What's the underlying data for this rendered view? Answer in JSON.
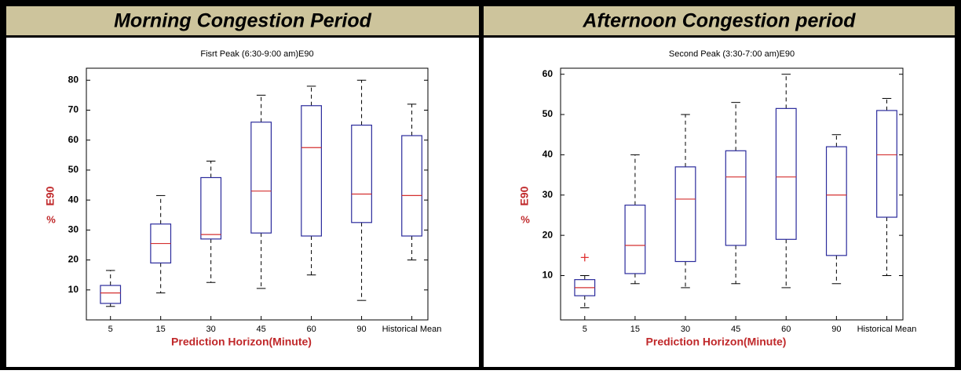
{
  "chart_data": [
    {
      "type": "box",
      "header": "Morning Congestion Period",
      "title": "Fisrt Peak (6:30-9:00 am)E90",
      "x_label": "Prediction Horizon(Minute)",
      "y_label": "E90",
      "y_unit": "%",
      "categories": [
        "5",
        "15",
        "30",
        "45",
        "60",
        "90",
        "Historical Mean"
      ],
      "whisker_low": [
        4.5,
        9,
        12.5,
        10.5,
        15,
        6.5,
        20
      ],
      "q1": [
        5.5,
        19,
        27,
        29,
        28,
        32.5,
        28
      ],
      "median": [
        9,
        25.5,
        28.5,
        43,
        57.5,
        42,
        41.5
      ],
      "q3": [
        11.5,
        32,
        47.5,
        66,
        71.5,
        65,
        61.5
      ],
      "whisker_high": [
        16.5,
        41.5,
        53,
        75,
        78,
        80,
        72
      ],
      "outliers": [
        [],
        [],
        [],
        [],
        [],
        [],
        []
      ],
      "ylim": [
        0,
        84
      ],
      "yticks": [
        10,
        20,
        30,
        40,
        50,
        60,
        70,
        80
      ],
      "box_color": "#2b2b9c",
      "median_color": "#d43030",
      "whisker_color": "#000000",
      "outlier_color": "#e03030"
    },
    {
      "type": "box",
      "header": "Afternoon Congestion period",
      "title": "Second Peak (3:30-7:00 am)E90",
      "x_label": "Prediction Horizon(Minute)",
      "y_label": "E90",
      "y_unit": "%",
      "categories": [
        "5",
        "15",
        "30",
        "45",
        "60",
        "90",
        "Historical Mean"
      ],
      "whisker_low": [
        2,
        8,
        7,
        8,
        7,
        8,
        10
      ],
      "q1": [
        5,
        10.5,
        13.5,
        17.5,
        19,
        15,
        24.5
      ],
      "median": [
        7,
        17.5,
        29,
        34.5,
        34.5,
        30,
        40
      ],
      "q3": [
        9,
        27.5,
        37,
        41,
        51.5,
        42,
        51
      ],
      "whisker_high": [
        10,
        40,
        50,
        53,
        60,
        45,
        54
      ],
      "outliers": [
        [
          14.5
        ],
        [],
        [],
        [],
        [],
        [],
        []
      ],
      "ylim": [
        -1,
        61.5
      ],
      "yticks": [
        10,
        20,
        30,
        40,
        50,
        60
      ],
      "box_color": "#2b2b9c",
      "median_color": "#d43030",
      "whisker_color": "#000000",
      "outlier_color": "#e03030"
    }
  ]
}
